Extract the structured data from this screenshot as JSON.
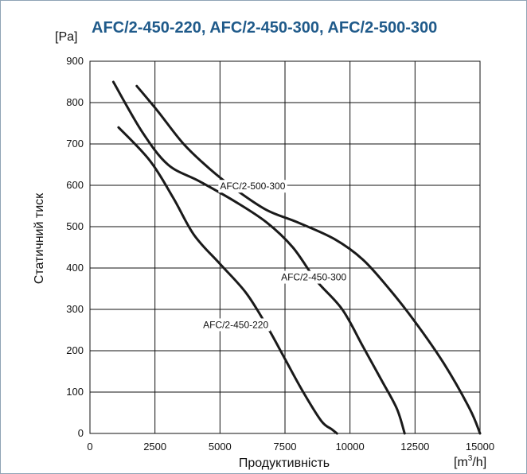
{
  "chart_data": {
    "type": "line",
    "title": "AFC/2-450-220, AFC/2-450-300, AFC/2-500-300",
    "xlabel": "Продуктивність",
    "ylabel": "Статичний тиск",
    "xunit_base": "[m",
    "xunit_sup": "3",
    "xunit_tail": "/h]",
    "yunit": "[Pa]",
    "xlim": [
      0,
      15000
    ],
    "ylim": [
      0,
      900
    ],
    "xticks": [
      "0",
      "2500",
      "5000",
      "7500",
      "10000",
      "12500",
      "15000"
    ],
    "yticks": [
      "0",
      "100",
      "200",
      "300",
      "400",
      "500",
      "600",
      "700",
      "800",
      "900"
    ],
    "grid": true,
    "colors": {
      "title": "#1f5a8a",
      "curve": "#1a1a1a",
      "frame": "#8fa3b5"
    },
    "series": [
      {
        "name": "AFC/2-450-220",
        "label_at": [
          4350,
          255
        ],
        "x": [
          1100,
          2300,
          3200,
          4000,
          5000,
          6000,
          6800,
          7500,
          8200,
          8900,
          9300,
          9500
        ],
        "y": [
          740,
          660,
          570,
          480,
          410,
          340,
          260,
          180,
          100,
          30,
          10,
          0
        ]
      },
      {
        "name": "AFC/2-450-300",
        "label_at": [
          7350,
          370
        ],
        "x": [
          900,
          2000,
          3000,
          4200,
          5600,
          6800,
          7800,
          8700,
          9700,
          10500,
          11200,
          11800,
          12100
        ],
        "y": [
          850,
          730,
          650,
          610,
          560,
          510,
          450,
          370,
          300,
          210,
          130,
          60,
          0
        ]
      },
      {
        "name": "AFC/2-500-300",
        "label_at": [
          5000,
          590
        ],
        "x": [
          1800,
          2600,
          3600,
          4600,
          5600,
          6800,
          8000,
          9400,
          10500,
          11500,
          12500,
          13600,
          14600,
          15000
        ],
        "y": [
          840,
          780,
          700,
          640,
          590,
          540,
          510,
          470,
          420,
          350,
          270,
          170,
          60,
          0
        ]
      }
    ]
  }
}
